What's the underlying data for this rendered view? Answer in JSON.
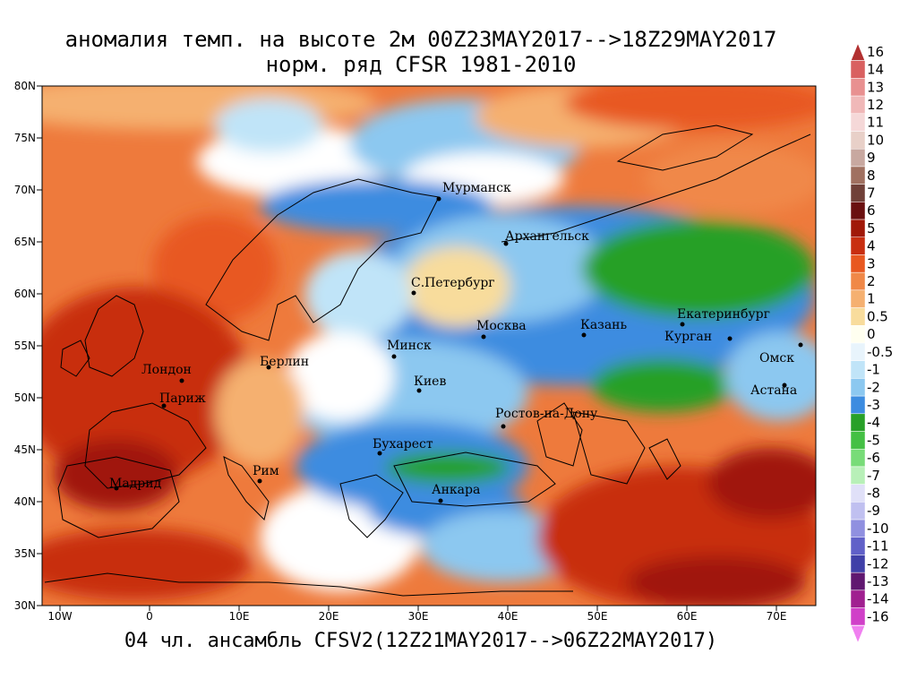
{
  "title_line1": "аномалия темп. на высоте 2м 00Z23MAY2017-->18Z29MAY2017",
  "title_line2": "норм. ряд CFSR 1981-2010",
  "footer": "04 чл. ансамбль CFSV2(12Z21MAY2017-->06Z22MAY2017)",
  "lat_ticks": [
    "80N",
    "75N",
    "70N",
    "65N",
    "60N",
    "55N",
    "50N",
    "45N",
    "40N",
    "35N",
    "30N"
  ],
  "lon_ticks": [
    "10W",
    "0",
    "10E",
    "20E",
    "30E",
    "40E",
    "50E",
    "60E",
    "70E"
  ],
  "colorbar": {
    "labels": [
      "16",
      "14",
      "13",
      "12",
      "11",
      "10",
      "9",
      "8",
      "7",
      "6",
      "5",
      "4",
      "3",
      "2",
      "1",
      "0.5",
      "0",
      "-0.5",
      "-1",
      "-2",
      "-3",
      "-4",
      "-5",
      "-6",
      "-7",
      "-8",
      "-9",
      "-10",
      "-11",
      "-12",
      "-13",
      "-14",
      "-16"
    ],
    "colors": [
      "#b23030",
      "#d96060",
      "#e89090",
      "#f0b8b8",
      "#f5d8d8",
      "#e8d0c8",
      "#c8a8a0",
      "#a07060",
      "#704038",
      "#6a1010",
      "#a01808",
      "#c82e10",
      "#e85820",
      "#f08848",
      "#f5b070",
      "#f8dc9c",
      "#fffff0",
      "#e8f4fc",
      "#c0e4f8",
      "#8cc8f0",
      "#3c8ce0",
      "#28a028",
      "#44c044",
      "#78dc78",
      "#b8f0b8",
      "#e0e0f8",
      "#c0c0f0",
      "#9090e0",
      "#6060c8",
      "#4040a8",
      "#601870",
      "#a02090",
      "#d040c8",
      "#f080f0"
    ]
  },
  "cities": [
    {
      "name": "Мурманск"
    },
    {
      "name": "Архангельск"
    },
    {
      "name": "С.Петербург"
    },
    {
      "name": "Москва"
    },
    {
      "name": "Казань"
    },
    {
      "name": "Екатеринбург"
    },
    {
      "name": "Курган"
    },
    {
      "name": "Омск"
    },
    {
      "name": "Астана"
    },
    {
      "name": "Минск"
    },
    {
      "name": "Берлин"
    },
    {
      "name": "Лондон"
    },
    {
      "name": "Париж"
    },
    {
      "name": "Киев"
    },
    {
      "name": "Ростов-на-Дону"
    },
    {
      "name": "Бухарест"
    },
    {
      "name": "Рим"
    },
    {
      "name": "Мадрид"
    },
    {
      "name": "Анкара"
    }
  ]
}
